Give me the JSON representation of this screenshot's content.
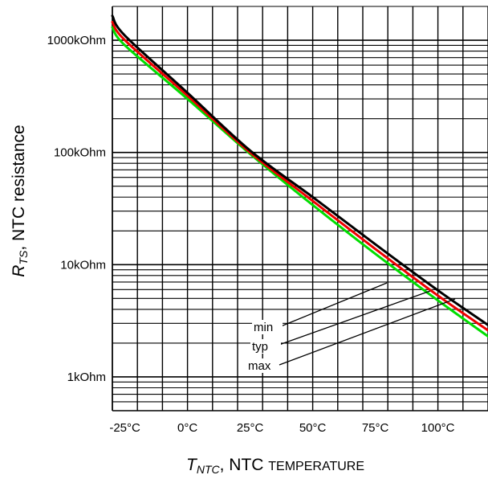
{
  "chart_data": {
    "type": "line",
    "title": "",
    "xlabel": {
      "symbol": "T",
      "subscript": "NTC",
      "rest": ", NTC ",
      "rest_small": "TEMPERATURE"
    },
    "ylabel": {
      "symbol": "R",
      "subscript": "TS",
      "rest": ", NTC resistance"
    },
    "x_unit": "°C",
    "y_scale": "log",
    "xlim": [
      -30,
      120
    ],
    "ylim": [
      0.5,
      2000
    ],
    "x_ticks": [
      -25,
      0,
      25,
      50,
      75,
      100
    ],
    "x_tick_labels": [
      "-25°C",
      "0°C",
      "25°C",
      "50°C",
      "75°C",
      "100°C"
    ],
    "y_ticks": [
      1,
      10,
      100,
      1000
    ],
    "y_tick_labels": [
      "1kOhm",
      "10kOhm",
      "100kOhm",
      "1000kOhm"
    ],
    "grid": true,
    "series": [
      {
        "name": "min",
        "color": "#00dd00",
        "x": [
          -30,
          -25,
          0,
          25,
          50,
          75,
          100,
          120
        ],
        "y": [
          1300,
          900,
          300,
          97,
          34,
          12.5,
          4.8,
          2.3
        ]
      },
      {
        "name": "typ",
        "color": "#ee0000",
        "x": [
          -30,
          -25,
          0,
          25,
          50,
          75,
          100,
          120
        ],
        "y": [
          1450,
          1000,
          320,
          100,
          37,
          13.8,
          5.3,
          2.6
        ]
      },
      {
        "name": "max",
        "color": "#000000",
        "x": [
          -30,
          -25,
          0,
          25,
          50,
          75,
          100,
          120
        ],
        "y": [
          1650,
          1100,
          340,
          104,
          40,
          15.2,
          5.9,
          2.9
        ]
      }
    ],
    "annotations": [
      "min",
      "typ",
      "max"
    ]
  }
}
